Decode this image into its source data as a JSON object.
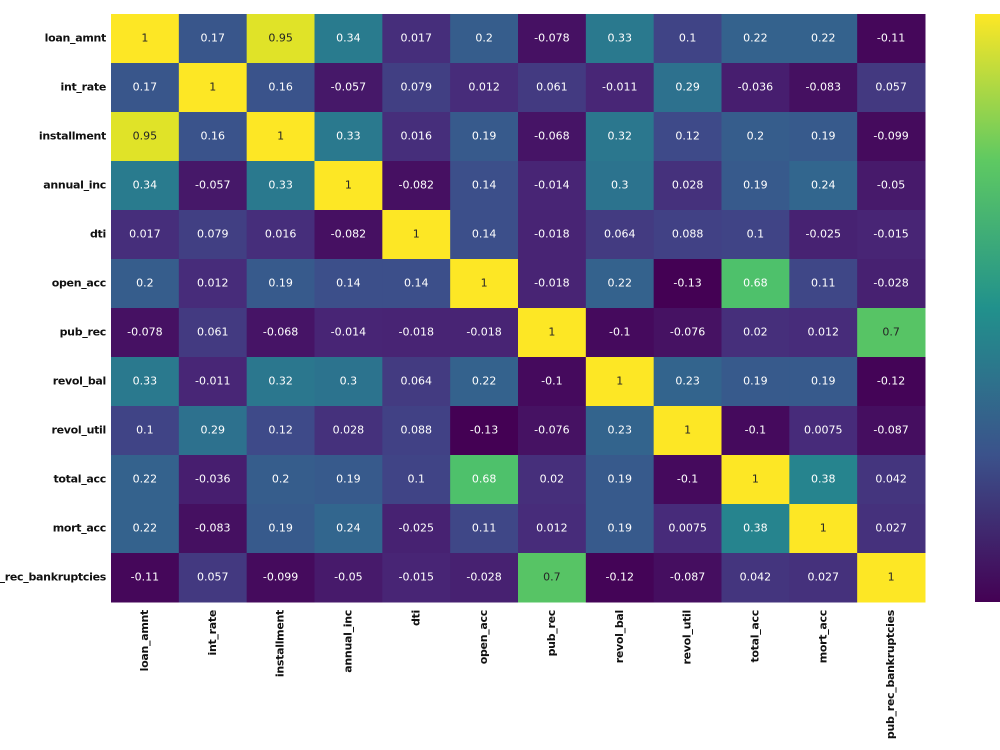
{
  "chart_data": {
    "type": "heatmap",
    "colormap": "viridis",
    "categories": [
      "loan_amnt",
      "int_rate",
      "installment",
      "annual_inc",
      "dti",
      "open_acc",
      "pub_rec",
      "revol_bal",
      "revol_util",
      "total_acc",
      "mort_acc",
      "pub_rec_bankruptcies"
    ],
    "values": [
      [
        1,
        0.17,
        0.95,
        0.34,
        0.017,
        0.2,
        -0.078,
        0.33,
        0.1,
        0.22,
        0.22,
        -0.11
      ],
      [
        0.17,
        1,
        0.16,
        -0.057,
        0.079,
        0.012,
        0.061,
        -0.011,
        0.29,
        -0.036,
        -0.083,
        0.057
      ],
      [
        0.95,
        0.16,
        1,
        0.33,
        0.016,
        0.19,
        -0.068,
        0.32,
        0.12,
        0.2,
        0.19,
        -0.099
      ],
      [
        0.34,
        -0.057,
        0.33,
        1,
        -0.082,
        0.14,
        -0.014,
        0.3,
        0.028,
        0.19,
        0.24,
        -0.05
      ],
      [
        0.017,
        0.079,
        0.016,
        -0.082,
        1,
        0.14,
        -0.018,
        0.064,
        0.088,
        0.1,
        -0.025,
        -0.015
      ],
      [
        0.2,
        0.012,
        0.19,
        0.14,
        0.14,
        1,
        -0.018,
        0.22,
        -0.13,
        0.68,
        0.11,
        -0.028
      ],
      [
        -0.078,
        0.061,
        -0.068,
        -0.014,
        -0.018,
        -0.018,
        1,
        -0.1,
        -0.076,
        0.02,
        0.012,
        0.7
      ],
      [
        0.33,
        -0.011,
        0.32,
        0.3,
        0.064,
        0.22,
        -0.1,
        1,
        0.23,
        0.19,
        0.19,
        -0.12
      ],
      [
        0.1,
        0.29,
        0.12,
        0.028,
        0.088,
        -0.13,
        -0.076,
        0.23,
        1,
        -0.1,
        0.0075,
        -0.087
      ],
      [
        0.22,
        -0.036,
        0.2,
        0.19,
        0.1,
        0.68,
        0.02,
        0.19,
        -0.1,
        1,
        0.38,
        0.042
      ],
      [
        0.22,
        -0.083,
        0.19,
        0.24,
        -0.025,
        0.11,
        0.012,
        0.19,
        0.0075,
        0.38,
        1,
        0.027
      ],
      [
        -0.11,
        0.057,
        -0.099,
        -0.05,
        -0.015,
        -0.028,
        0.7,
        -0.12,
        -0.087,
        0.042,
        0.027,
        1
      ]
    ]
  }
}
